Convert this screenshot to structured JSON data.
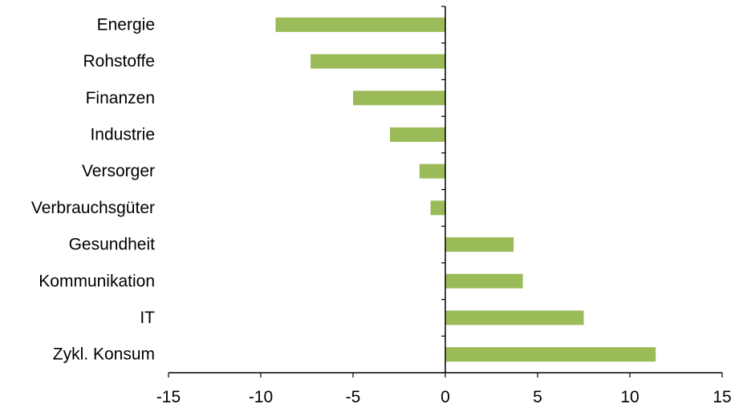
{
  "chart_data": {
    "type": "bar",
    "orientation": "horizontal",
    "categories": [
      "Energie",
      "Rohstoffe",
      "Finanzen",
      "Industrie",
      "Versorger",
      "Verbrauchsgüter",
      "Gesundheit",
      "Kommunikation",
      "IT",
      "Zykl. Konsum"
    ],
    "values": [
      -9.2,
      -7.3,
      -5.0,
      -3.0,
      -1.4,
      -0.8,
      3.7,
      4.2,
      7.5,
      11.4
    ],
    "bar_color": "#9bbb59",
    "xlim": [
      -15,
      15
    ],
    "x_ticks": [
      -15,
      -10,
      -5,
      0,
      5,
      10,
      15
    ],
    "x_tick_labels": [
      "-15",
      "-10",
      "-5",
      "0",
      "5",
      "10",
      "15"
    ],
    "title": "",
    "xlabel": "",
    "ylabel": "",
    "grid": false,
    "legend": "none"
  }
}
